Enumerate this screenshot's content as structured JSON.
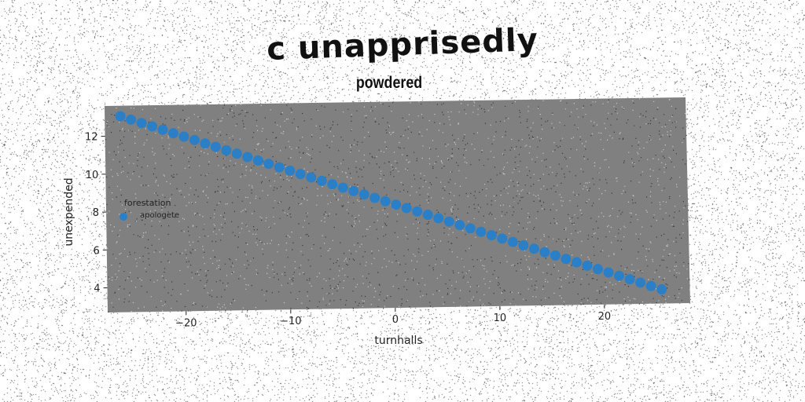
{
  "title": "c unapprisedly",
  "subtitle": "powdered",
  "chart_data": {
    "type": "scatter",
    "xlabel": "turnhalls",
    "ylabel": "unexpended",
    "xlim": [
      -27.5,
      28.2
    ],
    "ylim": [
      2.7,
      13.6
    ],
    "xticks": [
      -20,
      -10,
      0,
      10,
      20
    ],
    "yticks": [
      4,
      6,
      8,
      10,
      12
    ],
    "xtick_labels": [
      "−20",
      "−10",
      "0",
      "10",
      "20"
    ],
    "ytick_labels": [
      "4",
      "6",
      "8",
      "10",
      "12"
    ],
    "grid": false,
    "legend": {
      "title": "forestation",
      "placement": "center-left",
      "entries": [
        {
          "label": "apologete",
          "color": "#2a7fc6"
        }
      ]
    },
    "series": [
      {
        "name": "apologete",
        "color": "#2a7fc6",
        "marker": "circle",
        "x_start": -26,
        "x_end": 25.5,
        "points": 52,
        "y_at_x_start": 13.05,
        "y_at_x_end": 3.45
      }
    ],
    "plot_background": "#808080"
  }
}
